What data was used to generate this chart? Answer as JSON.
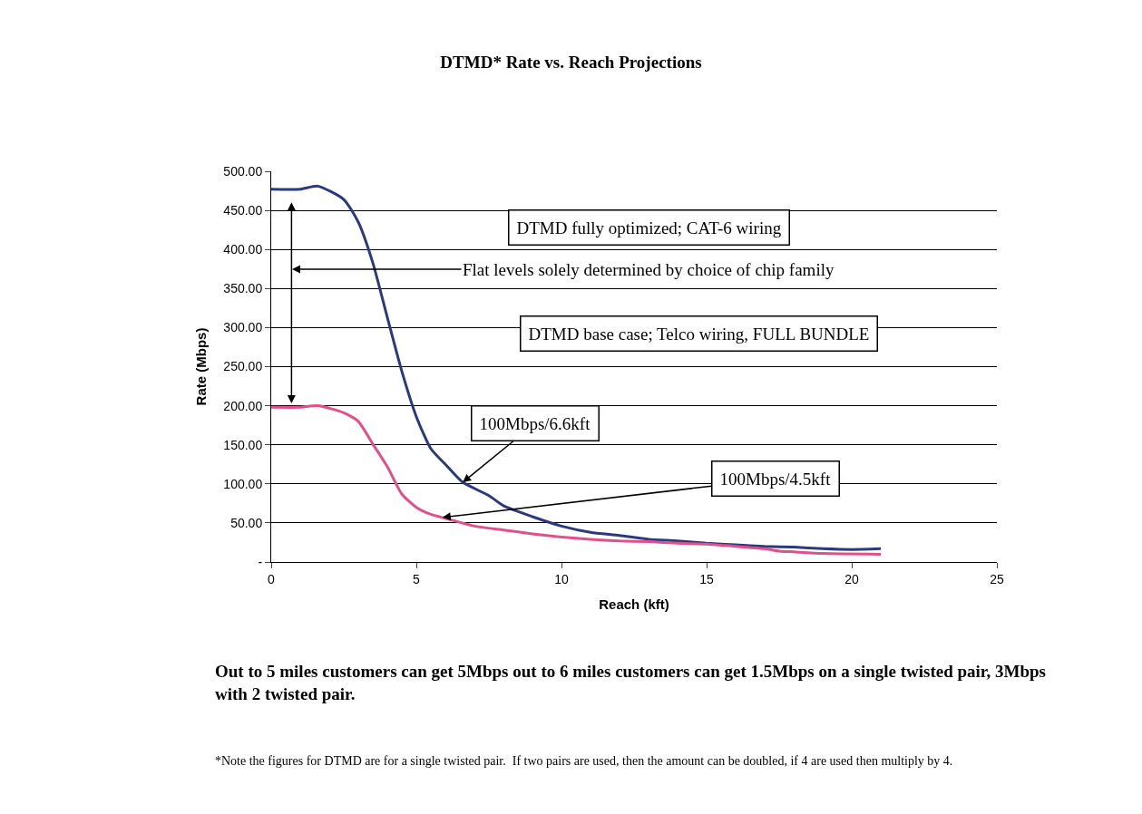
{
  "chart_data": {
    "type": "line",
    "title": "DTMD* Rate vs. Reach Projections",
    "xlabel": "Reach (kft)",
    "ylabel": "Rate (Mbps)",
    "xlim": [
      0,
      25
    ],
    "xticks": [
      0,
      5,
      10,
      15,
      20,
      25
    ],
    "ylim": [
      0,
      500
    ],
    "yticks": [
      {
        "value": 0,
        "label": "-"
      },
      {
        "value": 50,
        "label": "50.00"
      },
      {
        "value": 100,
        "label": "100.00"
      },
      {
        "value": 150,
        "label": "150.00"
      },
      {
        "value": 200,
        "label": "200.00"
      },
      {
        "value": 250,
        "label": "250.00"
      },
      {
        "value": 300,
        "label": "300.00"
      },
      {
        "value": 350,
        "label": "350.00"
      },
      {
        "value": 400,
        "label": "400.00"
      },
      {
        "value": 450,
        "label": "450.00"
      },
      {
        "value": 500,
        "label": "500.00"
      }
    ],
    "grid": "y",
    "marker": "none",
    "line_style": "solid",
    "series": [
      {
        "color": "#2b3a7a",
        "x": [
          0,
          1,
          1.6,
          2.5,
          3,
          3.5,
          4,
          4.5,
          5,
          5.5,
          6,
          6.6,
          7.5,
          8,
          9,
          10,
          11,
          12,
          13,
          14,
          15,
          16,
          17,
          18,
          19,
          20,
          21
        ],
        "values": [
          477,
          477,
          481,
          464,
          435,
          383,
          313,
          244,
          186,
          145,
          125,
          102,
          85,
          72,
          58,
          46,
          38,
          34,
          29,
          27,
          24,
          22,
          20,
          19,
          17,
          16,
          17
        ]
      },
      {
        "color": "#e0508a",
        "x": [
          0,
          1,
          1.6,
          2.5,
          3,
          3.5,
          4,
          4.5,
          5,
          5.5,
          6,
          7,
          8,
          9,
          10,
          11,
          12,
          13,
          14,
          15,
          16,
          17,
          17.5,
          18,
          19,
          21
        ],
        "values": [
          198,
          198,
          200,
          191,
          180,
          151,
          122,
          87,
          70,
          61,
          56,
          46,
          41,
          36,
          32,
          29,
          27,
          26,
          24,
          23,
          20,
          17,
          14,
          13,
          11,
          10
        ]
      }
    ],
    "annotations": [
      "DTMD fully optimized; CAT-6 wiring",
      "Flat levels solely determined by choice of chip family",
      "DTMD base case; Telco wiring, FULL BUNDLE",
      {
        "text": "100Mbps/6.6kft",
        "x": 6.6,
        "y": 102
      },
      {
        "text": "100Mbps/4.5kft",
        "x": 5.9,
        "y": 57
      },
      "Out to 5 miles customers can get 5Mbps out to 6 miles customers can get 1.5Mbps on a single twisted pair, 3Mbps with 2 twisted pair.",
      "*Note the figures for DTMD are for a single twisted pair.  If two pairs are used, then the amount can be doubled, if 4 are used then multiply by 4."
    ]
  }
}
